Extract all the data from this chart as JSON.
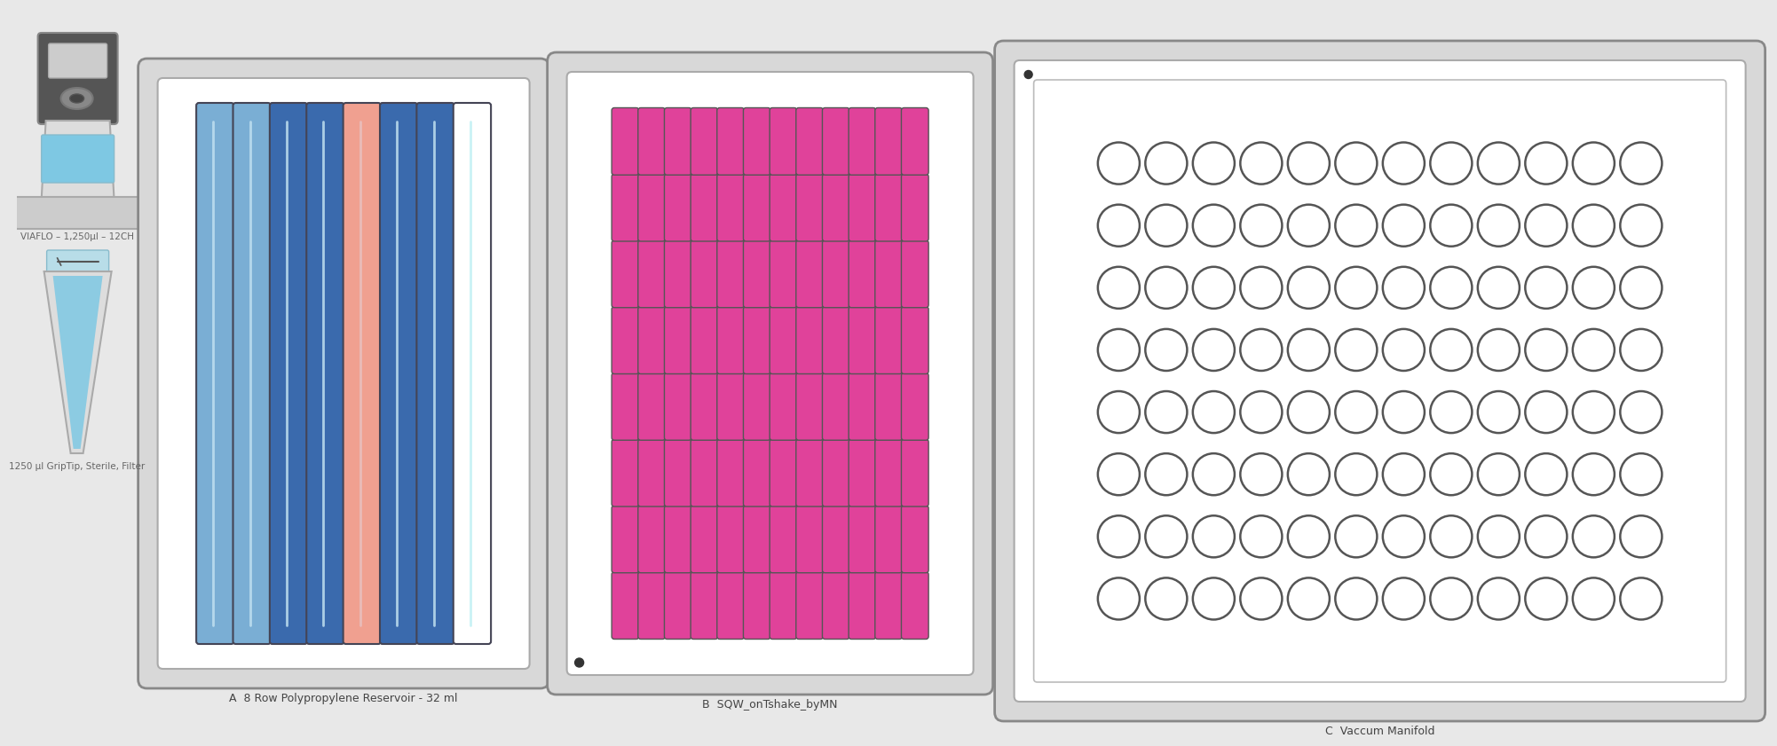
{
  "bg_color": "#e8e8e8",
  "panel_A_label": "A  8 Row Polypropylene Reservoir - 32 ml",
  "panel_B_label": "B  SQW_onTshake_byMN",
  "panel_C_label": "C  Vaccum Manifold",
  "pipette_label": "VIAFLO – 1,250µl – 12CH",
  "tip_label": "1250 µl GripTip, Sterile, Filter",
  "col_colors": [
    "#7aaed4",
    "#7aaed4",
    "#3a6aad",
    "#3a6aad",
    "#f0a090",
    "#3a6aad",
    "#3a6aad",
    "#ffffff"
  ],
  "col_highlight": [
    "#c0e0f0",
    "#c0e0f0",
    "#c0e0f0",
    "#c0e0f0",
    "#e8c0c0",
    "#c0e0f0",
    "#c0e0f0",
    "#c0f0f4"
  ],
  "pink_well_color": "#e0429a",
  "pink_well_edge": "#555555",
  "circle_fill": "#ffffff",
  "circle_edge": "#555555",
  "panel_outer_fill": "#d8d8d8",
  "panel_outer_edge": "#888888",
  "panel_inner_fill": "#ffffff",
  "panel_inner_edge": "#aaaaaa",
  "label_fontsize": 9,
  "pip_label_fontsize": 8
}
